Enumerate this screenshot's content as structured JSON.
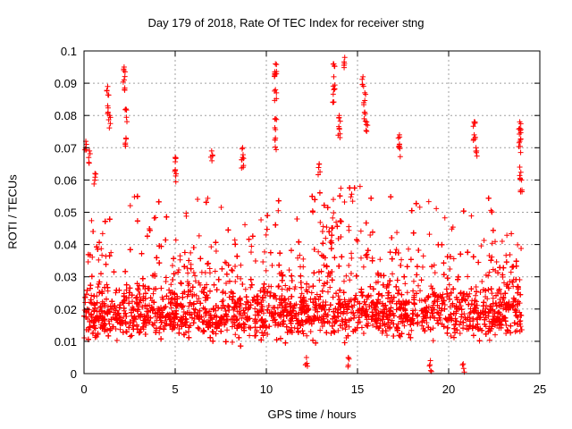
{
  "chart_data": {
    "type": "scatter",
    "title": "Day 179 of 2018, Rate Of TEC Index for receiver stng",
    "xlabel": "GPS time / hours",
    "ylabel": "ROTI / TECUs",
    "xlim": [
      0,
      25
    ],
    "ylim": [
      0,
      0.1
    ],
    "xticks": [
      "0",
      "5",
      "10",
      "15",
      "20",
      "25"
    ],
    "yticks": [
      "0",
      "0.01",
      "0.02",
      "0.03",
      "0.04",
      "0.05",
      "0.06",
      "0.07",
      "0.08",
      "0.09",
      "0.1"
    ],
    "grid": true,
    "marker": "+",
    "series_color": "#ff0000",
    "data_range": {
      "x": [
        0,
        24
      ],
      "y_typical": [
        0.005,
        0.045
      ],
      "y_median_approx": 0.018
    },
    "notable_points": [
      {
        "x": 0.1,
        "y": 0.072
      },
      {
        "x": 0.3,
        "y": 0.069
      },
      {
        "x": 0.6,
        "y": 0.062
      },
      {
        "x": 1.3,
        "y": 0.089
      },
      {
        "x": 1.3,
        "y": 0.083
      },
      {
        "x": 1.4,
        "y": 0.08
      },
      {
        "x": 2.2,
        "y": 0.095
      },
      {
        "x": 2.2,
        "y": 0.091
      },
      {
        "x": 2.3,
        "y": 0.082
      },
      {
        "x": 2.3,
        "y": 0.073
      },
      {
        "x": 5.0,
        "y": 0.067
      },
      {
        "x": 5.0,
        "y": 0.063
      },
      {
        "x": 7.0,
        "y": 0.069
      },
      {
        "x": 8.7,
        "y": 0.07
      },
      {
        "x": 8.7,
        "y": 0.067
      },
      {
        "x": 10.5,
        "y": 0.096
      },
      {
        "x": 10.5,
        "y": 0.093
      },
      {
        "x": 10.5,
        "y": 0.088
      },
      {
        "x": 10.5,
        "y": 0.079
      },
      {
        "x": 10.5,
        "y": 0.073
      },
      {
        "x": 12.9,
        "y": 0.065
      },
      {
        "x": 13.7,
        "y": 0.096
      },
      {
        "x": 13.7,
        "y": 0.092
      },
      {
        "x": 13.7,
        "y": 0.088
      },
      {
        "x": 14.3,
        "y": 0.098
      },
      {
        "x": 14.0,
        "y": 0.08
      },
      {
        "x": 14.0,
        "y": 0.076
      },
      {
        "x": 15.3,
        "y": 0.092
      },
      {
        "x": 15.4,
        "y": 0.087
      },
      {
        "x": 15.4,
        "y": 0.081
      },
      {
        "x": 15.5,
        "y": 0.078
      },
      {
        "x": 17.3,
        "y": 0.074
      },
      {
        "x": 17.3,
        "y": 0.071
      },
      {
        "x": 21.4,
        "y": 0.078
      },
      {
        "x": 21.4,
        "y": 0.074
      },
      {
        "x": 21.5,
        "y": 0.07
      },
      {
        "x": 23.9,
        "y": 0.078
      },
      {
        "x": 23.9,
        "y": 0.076
      },
      {
        "x": 23.9,
        "y": 0.072
      },
      {
        "x": 23.9,
        "y": 0.064
      },
      {
        "x": 24.0,
        "y": 0.06
      },
      {
        "x": 12.2,
        "y": 0.005
      },
      {
        "x": 14.5,
        "y": 0.005
      },
      {
        "x": 19.0,
        "y": 0.004
      },
      {
        "x": 20.8,
        "y": 0.003
      }
    ]
  }
}
